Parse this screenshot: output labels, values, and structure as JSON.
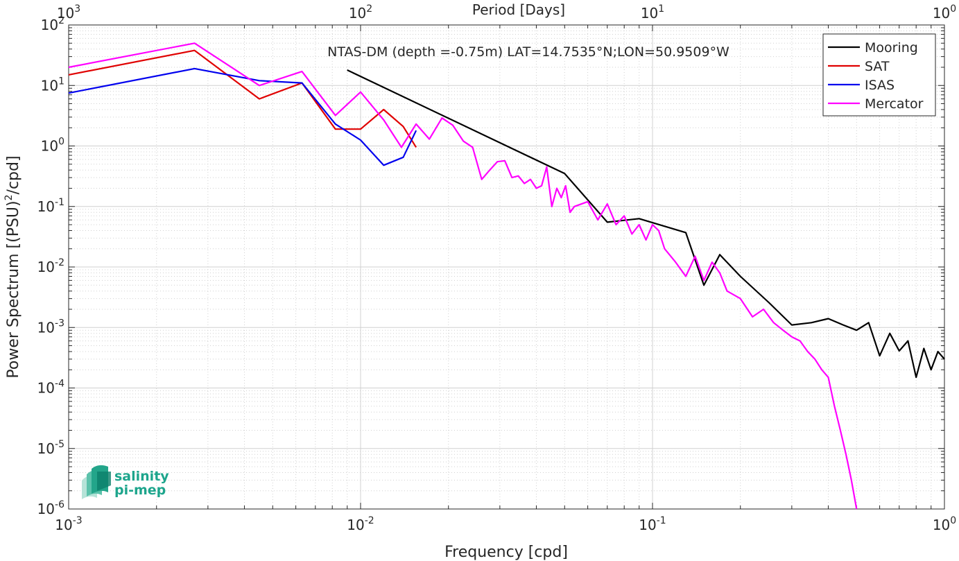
{
  "chart_data": {
    "type": "line",
    "title": "NTAS-DM (depth =-0.75m) LAT=14.7535°N;LON=50.9509°W",
    "xlabel": "Frequency [cpd]",
    "ylabel": "Power Spectrum [(PSU)²/cpd]",
    "ylabel_main": "Power Spectrum [(PSU)",
    "ylabel_sup": "2",
    "ylabel_tail": "/cpd]",
    "top_xlabel": "Period [Days]",
    "x_scale": "log",
    "y_scale": "log",
    "xlim": [
      0.001,
      1
    ],
    "ylim": [
      1e-06,
      100
    ],
    "x_ticks": [
      {
        "value": 0.001,
        "base": "10",
        "exp": "-3"
      },
      {
        "value": 0.01,
        "base": "10",
        "exp": "-2"
      },
      {
        "value": 0.1,
        "base": "10",
        "exp": "-1"
      },
      {
        "value": 1,
        "base": "10",
        "exp": "0"
      }
    ],
    "top_ticks": [
      {
        "value": 0.001,
        "base": "10",
        "exp": "3"
      },
      {
        "value": 0.01,
        "base": "10",
        "exp": "2"
      },
      {
        "value": 0.1,
        "base": "10",
        "exp": "1"
      },
      {
        "value": 1,
        "base": "10",
        "exp": "0"
      }
    ],
    "y_ticks": [
      {
        "value": 1e-06,
        "base": "10",
        "exp": "-6"
      },
      {
        "value": 1e-05,
        "base": "10",
        "exp": "-5"
      },
      {
        "value": 0.0001,
        "base": "10",
        "exp": "-4"
      },
      {
        "value": 0.001,
        "base": "10",
        "exp": "-3"
      },
      {
        "value": 0.01,
        "base": "10",
        "exp": "-2"
      },
      {
        "value": 0.1,
        "base": "10",
        "exp": "-1"
      },
      {
        "value": 1,
        "base": "10",
        "exp": "0"
      },
      {
        "value": 10,
        "base": "10",
        "exp": "1"
      },
      {
        "value": 100,
        "base": "10",
        "exp": "2"
      }
    ],
    "grid": true,
    "legend_position": "top-right",
    "series": [
      {
        "name": "Mooring",
        "color": "#000000",
        "x": [
          0.009,
          0.05,
          0.07,
          0.09,
          0.13,
          0.15,
          0.17,
          0.2,
          0.25,
          0.3,
          0.35,
          0.4,
          0.45,
          0.5,
          0.55,
          0.6,
          0.65,
          0.7,
          0.75,
          0.8,
          0.85,
          0.9,
          0.95,
          1.0
        ],
        "y": [
          18,
          0.35,
          0.055,
          0.063,
          0.037,
          0.005,
          0.016,
          0.007,
          0.0026,
          0.0011,
          0.0012,
          0.0014,
          0.0011,
          0.0009,
          0.0012,
          0.00034,
          0.0008,
          0.00041,
          0.0006,
          0.00015,
          0.00045,
          0.0002,
          0.0004,
          0.0003
        ]
      },
      {
        "name": "SAT",
        "color": "#e00000",
        "x": [
          0.001,
          0.0027,
          0.0045,
          0.0063,
          0.0082,
          0.01,
          0.012,
          0.014,
          0.0155
        ],
        "y": [
          15,
          38,
          6,
          11,
          1.9,
          1.9,
          4,
          2.1,
          0.95
        ]
      },
      {
        "name": "ISAS",
        "color": "#0000ee",
        "x": [
          0.001,
          0.0027,
          0.0045,
          0.0063,
          0.0082,
          0.01,
          0.012,
          0.014,
          0.0155
        ],
        "y": [
          7.5,
          19,
          12,
          11,
          2.3,
          1.25,
          0.48,
          0.65,
          1.8
        ]
      },
      {
        "name": "Mercator",
        "color": "#ff00ff",
        "x": [
          0.001,
          0.0027,
          0.0045,
          0.0063,
          0.0082,
          0.01,
          0.012,
          0.0138,
          0.0155,
          0.0172,
          0.019,
          0.0207,
          0.0225,
          0.0242,
          0.026,
          0.0277,
          0.0294,
          0.0312,
          0.033,
          0.0347,
          0.0364,
          0.0382,
          0.04,
          0.0417,
          0.0434,
          0.0452,
          0.047,
          0.0487,
          0.0504,
          0.0522,
          0.054,
          0.06,
          0.065,
          0.07,
          0.075,
          0.08,
          0.085,
          0.09,
          0.095,
          0.1,
          0.105,
          0.11,
          0.12,
          0.13,
          0.14,
          0.15,
          0.16,
          0.17,
          0.18,
          0.2,
          0.22,
          0.24,
          0.26,
          0.28,
          0.3,
          0.32,
          0.34,
          0.36,
          0.38,
          0.4,
          0.42,
          0.44,
          0.46,
          0.48,
          0.5
        ],
        "y": [
          20,
          50,
          10,
          17,
          3.2,
          7.8,
          2.7,
          0.95,
          2.3,
          1.3,
          2.9,
          2.2,
          1.2,
          0.95,
          0.28,
          0.4,
          0.55,
          0.57,
          0.3,
          0.32,
          0.24,
          0.28,
          0.2,
          0.22,
          0.45,
          0.1,
          0.2,
          0.14,
          0.22,
          0.08,
          0.1,
          0.12,
          0.06,
          0.11,
          0.05,
          0.07,
          0.035,
          0.05,
          0.028,
          0.05,
          0.04,
          0.02,
          0.012,
          0.007,
          0.015,
          0.006,
          0.012,
          0.008,
          0.004,
          0.003,
          0.0015,
          0.002,
          0.0012,
          0.0009,
          0.0007,
          0.0006,
          0.0004,
          0.0003,
          0.0002,
          0.00015,
          5e-05,
          2e-05,
          8e-06,
          3e-06,
          1e-06
        ]
      }
    ]
  },
  "logo": {
    "line1": "salinity",
    "line2": "pi-mep"
  }
}
